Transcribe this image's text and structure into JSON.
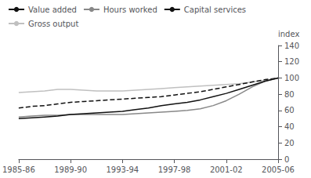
{
  "chart_data": {
    "type": "line",
    "y_label": "index",
    "categories": [
      "1985-86",
      null,
      null,
      null,
      "1989-90",
      null,
      null,
      null,
      "1993-94",
      null,
      null,
      null,
      "1997-98",
      null,
      null,
      null,
      "2001-02",
      null,
      null,
      null,
      "2005-06"
    ],
    "series": [
      {
        "name": "Value added",
        "color": "#111111",
        "line_style": "solid",
        "values": [
          50,
          51,
          52,
          53,
          55,
          56,
          57,
          58,
          59,
          61,
          63,
          66,
          68,
          70,
          73,
          77,
          81,
          86,
          91,
          96,
          100
        ]
      },
      {
        "name": "Hours worked",
        "color": "#888888",
        "line_style": "solid",
        "values": [
          52,
          53,
          54,
          54,
          55,
          55,
          55,
          55,
          55,
          56,
          57,
          58,
          59,
          60,
          62,
          66,
          72,
          80,
          89,
          96,
          100
        ]
      },
      {
        "name": "Capital services",
        "color": "#111111",
        "line_style": "dashed",
        "values": [
          63,
          65,
          66,
          68,
          70,
          71,
          72,
          73,
          74,
          75,
          76,
          77,
          79,
          81,
          83,
          86,
          89,
          92,
          95,
          98,
          100
        ]
      },
      {
        "name": "Gross output",
        "color": "#c0c0c0",
        "line_style": "solid",
        "values": [
          82,
          83,
          84,
          86,
          86,
          85,
          84,
          84,
          84,
          85,
          86,
          87,
          88,
          89,
          90,
          91,
          92,
          93,
          95,
          97,
          100
        ]
      }
    ],
    "ylim": [
      0,
      140
    ],
    "yticks": [
      0,
      20,
      40,
      60,
      80,
      100,
      120,
      140
    ],
    "legend": "upper left",
    "grid": false
  }
}
